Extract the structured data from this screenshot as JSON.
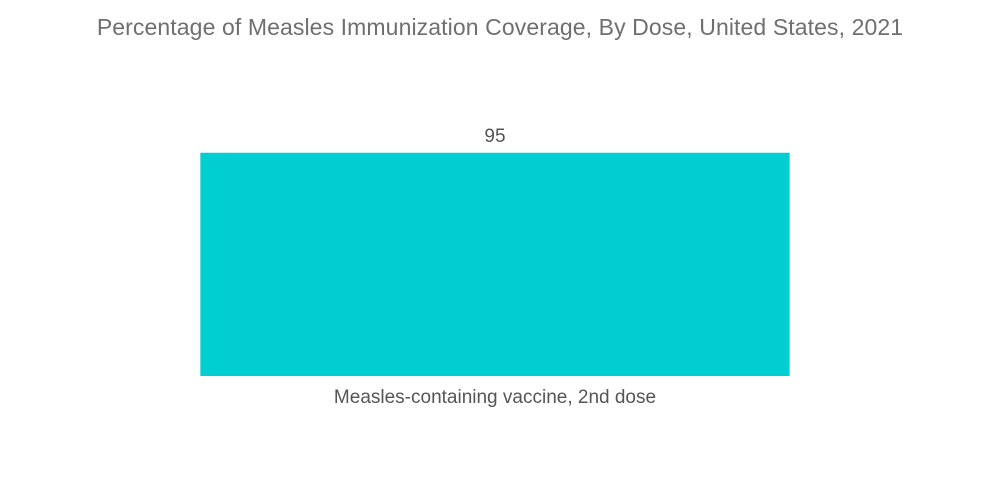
{
  "chart_data": {
    "type": "bar",
    "title": "Percentage of Measles Immunization Coverage, By Dose, United States, 2021",
    "categories": [
      "Measles-containing vaccine, 2nd dose"
    ],
    "values": [
      95
    ],
    "data_labels": [
      "95"
    ],
    "xlabel": "",
    "ylabel": "",
    "ylim": [
      0,
      100
    ],
    "grid": false,
    "legend": "none",
    "bar_color": "#00ced1"
  }
}
